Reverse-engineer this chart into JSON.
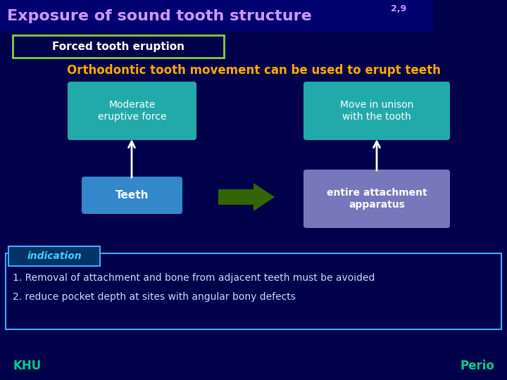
{
  "bg_color": "#00004a",
  "title_text": "Exposure of sound tooth structure ",
  "title_superscript": "2,9",
  "title_color": "#cc99ff",
  "title_bg": "#00006e",
  "subtitle_text": "Forced tooth eruption",
  "subtitle_border": "#88cc44",
  "subtitle_text_color": "#ffffff",
  "main_heading": "Orthodontic tooth movement can be used to erupt teeth",
  "main_heading_color": "#ffaa00",
  "box1_text": "Moderate\neruptive force",
  "box1_color": "#22aaaa",
  "box2_text": "Teeth",
  "box2_color": "#3388cc",
  "box3_text": "Move in unison\nwith the tooth",
  "box3_color": "#22aaaa",
  "box4_text": "entire attachment\napparatus",
  "box4_color": "#7777bb",
  "indication_label": "indication",
  "indication_label_bg": "#003366",
  "indication_label_border": "#44aaff",
  "indication_border": "#44aaff",
  "indication_text_1": "1. Removal of attachment and bone from adjacent teeth must be avoided",
  "indication_text_2": "2. reduce pocket depth at sites with angular bony defects",
  "indication_text_color": "#ccddff",
  "footer_left": "KHU",
  "footer_right": "Perio",
  "footer_color": "#00cc88",
  "arrow_color": "#ffffff",
  "big_arrow_color": "#336600"
}
